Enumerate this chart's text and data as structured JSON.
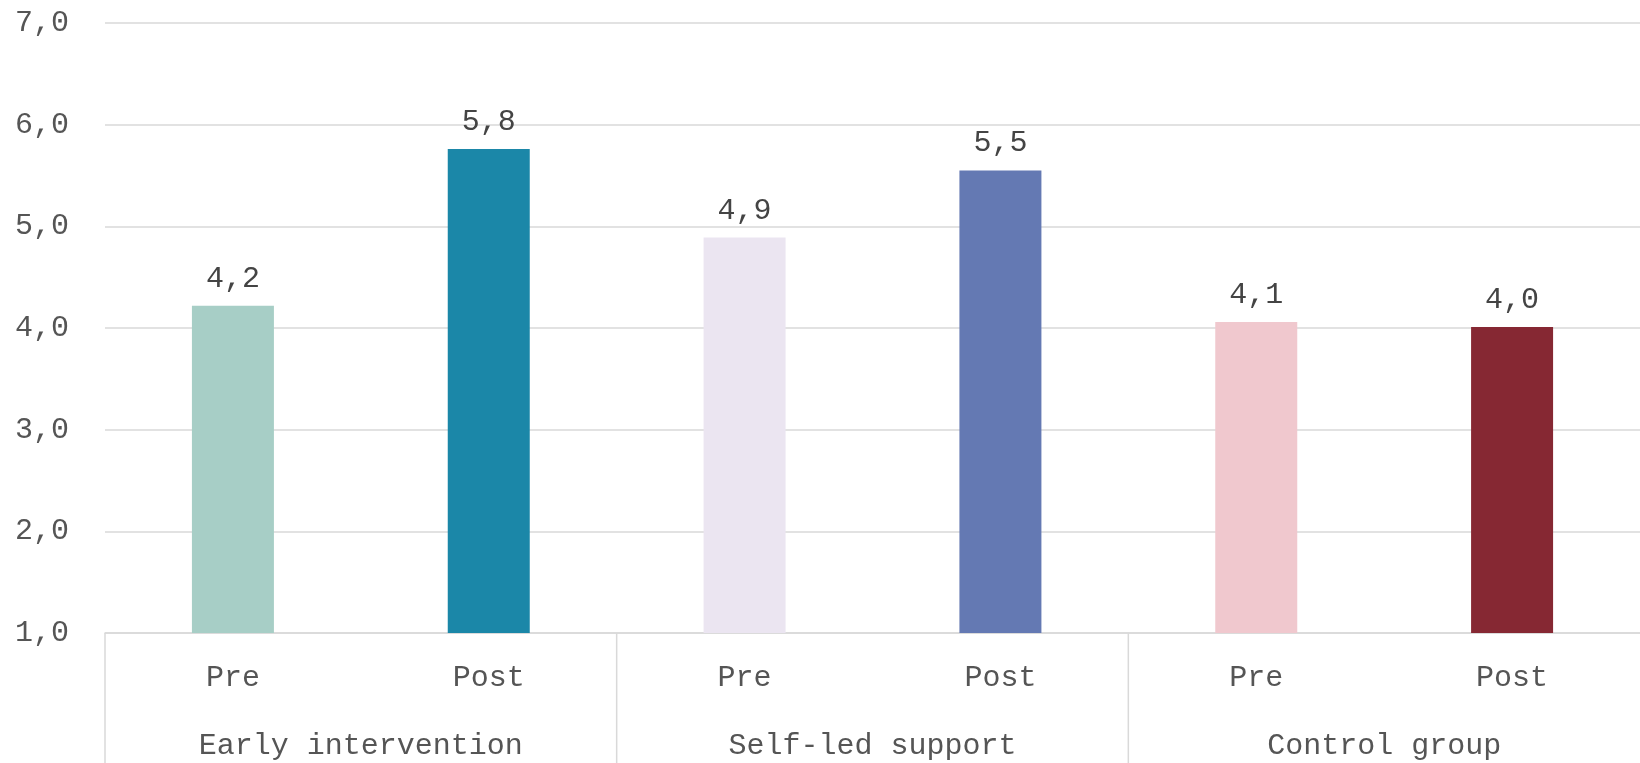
{
  "chart_data": {
    "type": "bar",
    "categories": [
      "Pre",
      "Post",
      "Pre",
      "Post",
      "Pre",
      "Post"
    ],
    "values": [
      4.22,
      5.76,
      4.89,
      5.55,
      4.06,
      4.01
    ],
    "value_labels": [
      "4,2",
      "5,8",
      "4,9",
      "5,5",
      "4,1",
      "4,0"
    ],
    "colors": [
      "#a7cec6",
      "#1b87a8",
      "#ebe5f1",
      "#6479b3",
      "#f0c8ce",
      "#862833"
    ],
    "ylim": [
      1,
      7
    ],
    "yticks": [
      {
        "value": 1,
        "label": "1,0"
      },
      {
        "value": 2,
        "label": "2,0"
      },
      {
        "value": 3,
        "label": "3,0"
      },
      {
        "value": 4,
        "label": "4,0"
      },
      {
        "value": 5,
        "label": "5,0"
      },
      {
        "value": 6,
        "label": "6,0"
      },
      {
        "value": 7,
        "label": "7,0"
      }
    ],
    "grid": "y",
    "annotations": [
      "Early intervention",
      "Self-led support",
      "Control group"
    ]
  }
}
